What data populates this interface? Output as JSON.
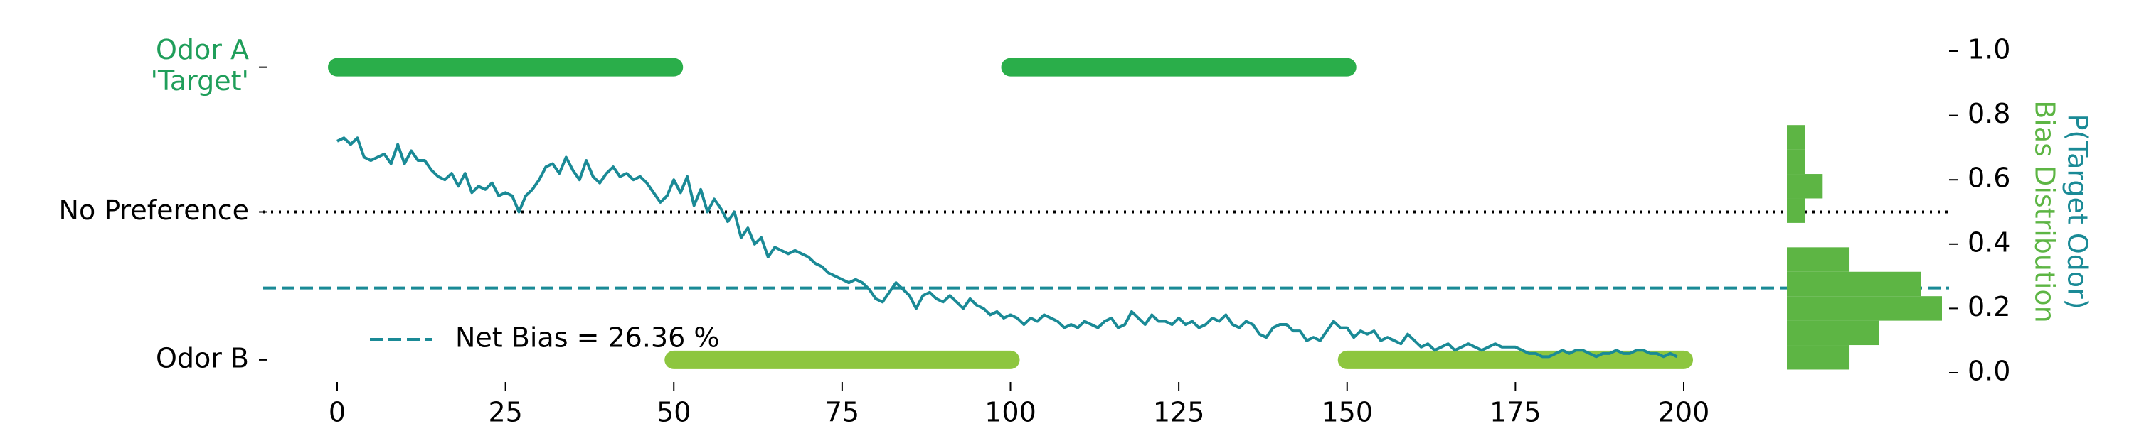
{
  "chart_data": {
    "type": "line",
    "x": [
      0,
      1,
      2,
      3,
      4,
      5,
      6,
      7,
      8,
      9,
      10,
      11,
      12,
      13,
      14,
      15,
      16,
      17,
      18,
      19,
      20,
      21,
      22,
      23,
      24,
      25,
      26,
      27,
      28,
      29,
      30,
      31,
      32,
      33,
      34,
      35,
      36,
      37,
      38,
      39,
      40,
      41,
      42,
      43,
      44,
      45,
      46,
      47,
      48,
      49,
      50,
      51,
      52,
      53,
      54,
      55,
      56,
      57,
      58,
      59,
      60,
      61,
      62,
      63,
      64,
      65,
      66,
      67,
      68,
      69,
      70,
      71,
      72,
      73,
      74,
      75,
      76,
      77,
      78,
      79,
      80,
      81,
      82,
      83,
      84,
      85,
      86,
      87,
      88,
      89,
      90,
      91,
      92,
      93,
      94,
      95,
      96,
      97,
      98,
      99,
      100,
      101,
      102,
      103,
      104,
      105,
      106,
      107,
      108,
      109,
      110,
      111,
      112,
      113,
      114,
      115,
      116,
      117,
      118,
      119,
      120,
      121,
      122,
      123,
      124,
      125,
      126,
      127,
      128,
      129,
      130,
      131,
      132,
      133,
      134,
      135,
      136,
      137,
      138,
      139,
      140,
      141,
      142,
      143,
      144,
      145,
      146,
      147,
      148,
      149,
      150,
      151,
      152,
      153,
      154,
      155,
      156,
      157,
      158,
      159,
      160,
      161,
      162,
      163,
      164,
      165,
      166,
      167,
      168,
      169,
      170,
      171,
      172,
      173,
      174,
      175,
      176,
      177,
      178,
      179,
      180,
      181,
      182,
      183,
      184,
      185,
      186,
      187,
      188,
      189,
      190,
      191,
      192,
      193,
      194,
      195,
      196,
      197,
      198,
      199
    ],
    "series": [
      {
        "color": "#1a8a96",
        "values": [
          0.72,
          0.73,
          0.71,
          0.73,
          0.67,
          0.66,
          0.67,
          0.68,
          0.65,
          0.71,
          0.65,
          0.69,
          0.66,
          0.66,
          0.63,
          0.61,
          0.6,
          0.62,
          0.58,
          0.62,
          0.56,
          0.58,
          0.57,
          0.59,
          0.55,
          0.56,
          0.55,
          0.5,
          0.55,
          0.57,
          0.6,
          0.64,
          0.65,
          0.62,
          0.67,
          0.63,
          0.6,
          0.66,
          0.61,
          0.59,
          0.62,
          0.64,
          0.61,
          0.62,
          0.6,
          0.61,
          0.59,
          0.56,
          0.53,
          0.55,
          0.6,
          0.56,
          0.61,
          0.52,
          0.57,
          0.5,
          0.54,
          0.51,
          0.47,
          0.5,
          0.42,
          0.45,
          0.4,
          0.42,
          0.36,
          0.39,
          0.38,
          0.37,
          0.38,
          0.37,
          0.36,
          0.34,
          0.33,
          0.31,
          0.3,
          0.29,
          0.28,
          0.29,
          0.28,
          0.26,
          0.23,
          0.22,
          0.25,
          0.28,
          0.26,
          0.24,
          0.2,
          0.24,
          0.25,
          0.23,
          0.22,
          0.24,
          0.22,
          0.2,
          0.23,
          0.21,
          0.2,
          0.18,
          0.19,
          0.17,
          0.18,
          0.17,
          0.15,
          0.17,
          0.16,
          0.18,
          0.17,
          0.16,
          0.14,
          0.15,
          0.14,
          0.16,
          0.15,
          0.14,
          0.16,
          0.17,
          0.14,
          0.15,
          0.19,
          0.17,
          0.15,
          0.18,
          0.16,
          0.16,
          0.15,
          0.17,
          0.15,
          0.16,
          0.14,
          0.15,
          0.17,
          0.16,
          0.18,
          0.15,
          0.14,
          0.16,
          0.15,
          0.12,
          0.11,
          0.14,
          0.15,
          0.15,
          0.13,
          0.13,
          0.1,
          0.11,
          0.1,
          0.13,
          0.16,
          0.14,
          0.14,
          0.11,
          0.13,
          0.12,
          0.13,
          0.1,
          0.11,
          0.1,
          0.09,
          0.12,
          0.1,
          0.08,
          0.09,
          0.07,
          0.08,
          0.09,
          0.07,
          0.08,
          0.09,
          0.08,
          0.07,
          0.08,
          0.09,
          0.08,
          0.08,
          0.08,
          0.07,
          0.06,
          0.06,
          0.05,
          0.05,
          0.06,
          0.07,
          0.06,
          0.07,
          0.07,
          0.06,
          0.05,
          0.06,
          0.06,
          0.07,
          0.06,
          0.06,
          0.07,
          0.07,
          0.06,
          0.06,
          0.05,
          0.06,
          0.05
        ]
      }
    ],
    "xlim": [
      0,
      200
    ],
    "xticks": [
      0,
      25,
      50,
      75,
      100,
      125,
      150,
      175,
      200
    ],
    "ylim": [
      0,
      1
    ],
    "yticks": [
      {
        "value": 0,
        "label": "0.0"
      },
      0.2,
      0.4,
      0.6,
      0.8,
      {
        "value": 1,
        "label": "1.0"
      }
    ],
    "ylabel": "P(Target Odor)",
    "ylabel_color": "#1a8a96",
    "y2label": "Bias Distribution",
    "y2label_color": "#5db544",
    "left_labels": [
      {
        "lines": [
          "Odor A",
          "'Target'"
        ],
        "value": 0.95,
        "color": "#1f9e5a"
      },
      {
        "lines": [
          "No Preference"
        ],
        "value": 0.5,
        "color": "#000000"
      },
      {
        "lines": [
          "Odor B"
        ],
        "value": 0.04,
        "color": "#000000"
      }
    ],
    "blocks": [
      {
        "x": [
          0,
          50
        ],
        "y": 0.95,
        "color": "#2aae4a"
      },
      {
        "x": [
          100,
          150
        ],
        "y": 0.95,
        "color": "#2aae4a"
      },
      {
        "x": [
          50,
          100
        ],
        "y": 0.04,
        "color": "#8dc63f"
      },
      {
        "x": [
          150,
          200
        ],
        "y": 0.04,
        "color": "#8dc63f"
      }
    ],
    "no_preference": 0.5,
    "net_bias": {
      "label": "Net Bias = 26.36 %",
      "value": 0.2636,
      "color": "#1a8a96"
    },
    "histogram": {
      "color": "#5db544",
      "bins": [
        0.01,
        0.086,
        0.162,
        0.238,
        0.314,
        0.39,
        0.466,
        0.542,
        0.618,
        0.694,
        0.77
      ],
      "counts": [
        21,
        31,
        52,
        45,
        21,
        0,
        6,
        12,
        6,
        6
      ]
    }
  }
}
